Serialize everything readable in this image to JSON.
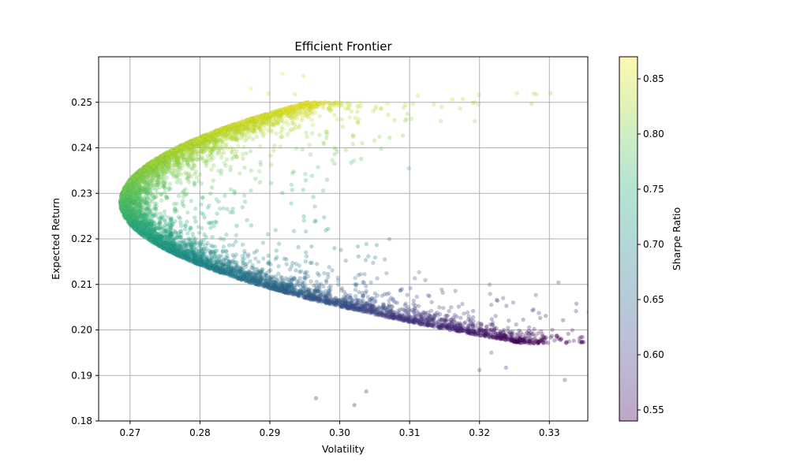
{
  "chart_data": {
    "type": "scatter",
    "title": "Efficient Frontier",
    "xlabel": "Volatility",
    "ylabel": "Expected Return",
    "xlim": [
      0.2655,
      0.3355
    ],
    "ylim": [
      0.18,
      0.26
    ],
    "xticks": [
      "0.27",
      "0.28",
      "0.29",
      "0.30",
      "0.31",
      "0.32",
      "0.33"
    ],
    "yticks": [
      "0.18",
      "0.19",
      "0.20",
      "0.21",
      "0.22",
      "0.23",
      "0.24",
      "0.25"
    ],
    "grid": true,
    "colormap": "viridis",
    "point_alpha": 0.3,
    "colorbar": {
      "label": "Sharpe Ratio",
      "range": [
        0.54,
        0.87
      ],
      "ticks": [
        "0.55",
        "0.60",
        "0.65",
        "0.70",
        "0.75",
        "0.80",
        "0.85"
      ]
    },
    "frontier": {
      "min_volatility": 0.2686,
      "return_at_min_volatility": 0.228,
      "return_range": [
        0.197,
        0.25
      ]
    },
    "notable_points": [
      {
        "x": 0.3322,
        "y": 0.189,
        "sharpe": 0.57
      },
      {
        "x": 0.2918,
        "y": 0.2562,
        "sharpe": 0.86
      },
      {
        "x": 0.2948,
        "y": 0.2558,
        "sharpe": 0.85
      },
      {
        "x": 0.2936,
        "y": 0.2518,
        "sharpe": 0.84
      },
      {
        "x": 0.2898,
        "y": 0.2519,
        "sharpe": 0.84
      },
      {
        "x": 0.3238,
        "y": 0.1917,
        "sharpe": 0.58
      },
      {
        "x": 0.3217,
        "y": 0.195,
        "sharpe": 0.6
      },
      {
        "x": 0.32,
        "y": 0.1912,
        "sharpe": 0.58
      },
      {
        "x": 0.319,
        "y": 0.2,
        "sharpe": 0.62
      },
      {
        "x": 0.3021,
        "y": 0.1835,
        "sharpe": 0.55
      },
      {
        "x": 0.3038,
        "y": 0.1865,
        "sharpe": 0.56
      },
      {
        "x": 0.2966,
        "y": 0.185,
        "sharpe": 0.56
      },
      {
        "x": 0.3022,
        "y": 0.2114,
        "sharpe": 0.68
      },
      {
        "x": 0.307,
        "y": 0.205,
        "sharpe": 0.65
      },
      {
        "x": 0.3115,
        "y": 0.2012,
        "sharpe": 0.63
      },
      {
        "x": 0.2857,
        "y": 0.2344,
        "sharpe": 0.8
      },
      {
        "x": 0.2873,
        "y": 0.253,
        "sharpe": 0.86
      }
    ]
  }
}
